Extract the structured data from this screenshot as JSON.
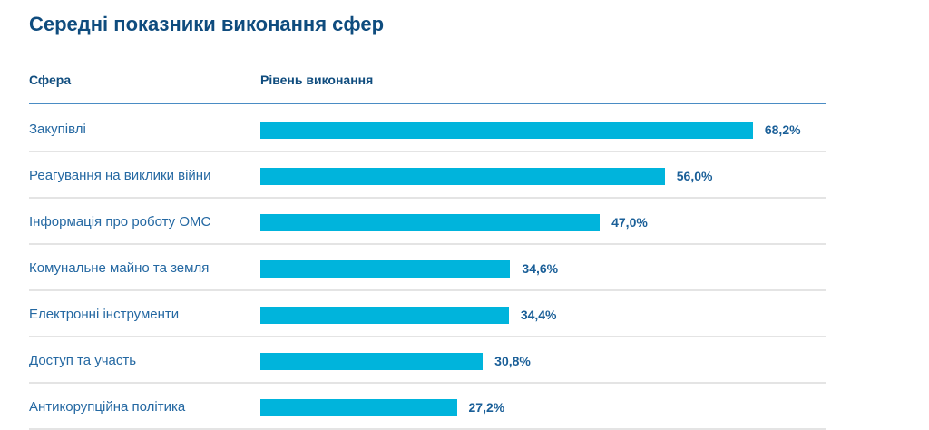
{
  "chart_data": {
    "type": "bar",
    "orientation": "horizontal",
    "title": "Середні показники виконання сфер",
    "column_headers": [
      "Сфера",
      "Рівень виконання"
    ],
    "categories": [
      "Закупівлі",
      "Реагування на виклики війни",
      "Інформація про роботу ОМС",
      "Комунальне майно та земля",
      "Електронні інструменти",
      "Доступ та участь",
      "Антикорупційна політика"
    ],
    "values": [
      68.2,
      56.0,
      47.0,
      34.6,
      34.4,
      30.8,
      27.2
    ],
    "value_labels": [
      "68,2%",
      "56,0%",
      "47,0%",
      "34,6%",
      "34,4%",
      "30,8%",
      "27,2%"
    ],
    "xlim": [
      0,
      100
    ],
    "colors": {
      "bar": "#00b4dc",
      "text": "#0f4c7e"
    }
  }
}
